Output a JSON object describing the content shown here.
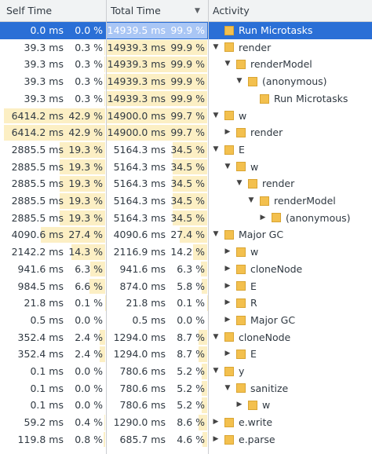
{
  "header": {
    "self_time": "Self Time",
    "total_time": "Total Time",
    "activity": "Activity"
  },
  "rows": [
    {
      "self_time": "0.0 ms",
      "self_pct": "0.0 %",
      "total_time": "14939.5 ms",
      "total_pct": "99.9 %",
      "activity": "Run Microtasks",
      "depth": 0,
      "toggle": "leaf"
    },
    {
      "self_time": "39.3 ms",
      "self_pct": "0.3 %",
      "total_time": "14939.3 ms",
      "total_pct": "99.9 %",
      "activity": "render",
      "depth": 0,
      "toggle": "expanded"
    },
    {
      "self_time": "39.3 ms",
      "self_pct": "0.3 %",
      "total_time": "14939.3 ms",
      "total_pct": "99.9 %",
      "activity": "renderModel",
      "depth": 1,
      "toggle": "expanded"
    },
    {
      "self_time": "39.3 ms",
      "self_pct": "0.3 %",
      "total_time": "14939.3 ms",
      "total_pct": "99.9 %",
      "activity": "(anonymous)",
      "depth": 2,
      "toggle": "expanded"
    },
    {
      "self_time": "39.3 ms",
      "self_pct": "0.3 %",
      "total_time": "14939.3 ms",
      "total_pct": "99.9 %",
      "activity": "Run Microtasks",
      "depth": 3,
      "toggle": "leaf"
    },
    {
      "self_time": "6414.2 ms",
      "self_pct": "42.9 %",
      "total_time": "14900.0 ms",
      "total_pct": "99.7 %",
      "activity": "w",
      "depth": 0,
      "toggle": "expanded"
    },
    {
      "self_time": "6414.2 ms",
      "self_pct": "42.9 %",
      "total_time": "14900.0 ms",
      "total_pct": "99.7 %",
      "activity": "render",
      "depth": 1,
      "toggle": "collapsed"
    },
    {
      "self_time": "2885.5 ms",
      "self_pct": "19.3 %",
      "total_time": "5164.3 ms",
      "total_pct": "34.5 %",
      "activity": "E",
      "depth": 0,
      "toggle": "expanded"
    },
    {
      "self_time": "2885.5 ms",
      "self_pct": "19.3 %",
      "total_time": "5164.3 ms",
      "total_pct": "34.5 %",
      "activity": "w",
      "depth": 1,
      "toggle": "expanded"
    },
    {
      "self_time": "2885.5 ms",
      "self_pct": "19.3 %",
      "total_time": "5164.3 ms",
      "total_pct": "34.5 %",
      "activity": "render",
      "depth": 2,
      "toggle": "expanded"
    },
    {
      "self_time": "2885.5 ms",
      "self_pct": "19.3 %",
      "total_time": "5164.3 ms",
      "total_pct": "34.5 %",
      "activity": "renderModel",
      "depth": 3,
      "toggle": "expanded"
    },
    {
      "self_time": "2885.5 ms",
      "self_pct": "19.3 %",
      "total_time": "5164.3 ms",
      "total_pct": "34.5 %",
      "activity": "(anonymous)",
      "depth": 4,
      "toggle": "collapsed"
    },
    {
      "self_time": "4090.6 ms",
      "self_pct": "27.4 %",
      "total_time": "4090.6 ms",
      "total_pct": "27.4 %",
      "activity": "Major GC",
      "depth": 0,
      "toggle": "expanded"
    },
    {
      "self_time": "2142.2 ms",
      "self_pct": "14.3 %",
      "total_time": "2116.9 ms",
      "total_pct": "14.2 %",
      "activity": "w",
      "depth": 1,
      "toggle": "collapsed"
    },
    {
      "self_time": "941.6 ms",
      "self_pct": "6.3 %",
      "total_time": "941.6 ms",
      "total_pct": "6.3 %",
      "activity": "cloneNode",
      "depth": 1,
      "toggle": "collapsed"
    },
    {
      "self_time": "984.5 ms",
      "self_pct": "6.6 %",
      "total_time": "874.0 ms",
      "total_pct": "5.8 %",
      "activity": "E",
      "depth": 1,
      "toggle": "collapsed"
    },
    {
      "self_time": "21.8 ms",
      "self_pct": "0.1 %",
      "total_time": "21.8 ms",
      "total_pct": "0.1 %",
      "activity": "R",
      "depth": 1,
      "toggle": "collapsed"
    },
    {
      "self_time": "0.5 ms",
      "self_pct": "0.0 %",
      "total_time": "0.5 ms",
      "total_pct": "0.0 %",
      "activity": "Major GC",
      "depth": 1,
      "toggle": "collapsed"
    },
    {
      "self_time": "352.4 ms",
      "self_pct": "2.4 %",
      "total_time": "1294.0 ms",
      "total_pct": "8.7 %",
      "activity": "cloneNode",
      "depth": 0,
      "toggle": "expanded"
    },
    {
      "self_time": "352.4 ms",
      "self_pct": "2.4 %",
      "total_time": "1294.0 ms",
      "total_pct": "8.7 %",
      "activity": "E",
      "depth": 1,
      "toggle": "collapsed"
    },
    {
      "self_time": "0.1 ms",
      "self_pct": "0.0 %",
      "total_time": "780.6 ms",
      "total_pct": "5.2 %",
      "activity": "y",
      "depth": 0,
      "toggle": "expanded"
    },
    {
      "self_time": "0.1 ms",
      "self_pct": "0.0 %",
      "total_time": "780.6 ms",
      "total_pct": "5.2 %",
      "activity": "sanitize",
      "depth": 1,
      "toggle": "expanded"
    },
    {
      "self_time": "0.1 ms",
      "self_pct": "0.0 %",
      "total_time": "780.6 ms",
      "total_pct": "5.2 %",
      "activity": "w",
      "depth": 2,
      "toggle": "collapsed"
    },
    {
      "self_time": "59.2 ms",
      "self_pct": "0.4 %",
      "total_time": "1290.0 ms",
      "total_pct": "8.6 %",
      "activity": "e.write",
      "depth": 0,
      "toggle": "collapsed"
    },
    {
      "self_time": "119.8 ms",
      "self_pct": "0.8 %",
      "total_time": "685.7 ms",
      "total_pct": "4.6 %",
      "activity": "e.parse",
      "depth": 0,
      "toggle": "collapsed"
    }
  ]
}
